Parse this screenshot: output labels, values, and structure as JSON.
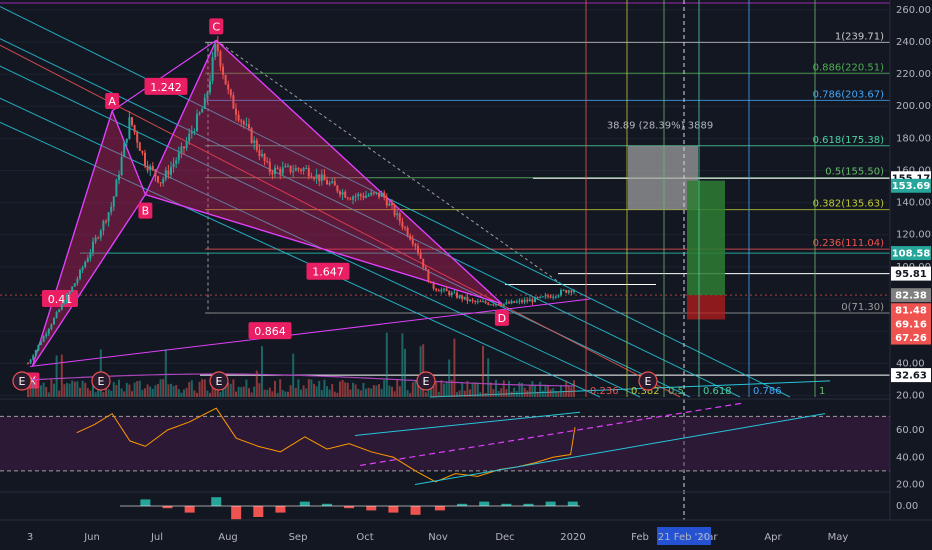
{
  "chart_data": [
    {
      "type": "candlestick",
      "y_tick_labels": [
        "260.00",
        "240.00",
        "220.00",
        "200.00",
        "180.00",
        "160.00",
        "140.00",
        "120.00",
        "100.00",
        "80.00",
        "60.00",
        "40.00",
        "20.00"
      ],
      "y_ticks": [
        260,
        240,
        220,
        200,
        180,
        160,
        140,
        120,
        100,
        80,
        60,
        40,
        20
      ],
      "ylim": [
        19,
        263
      ],
      "x_tick_labels": [
        "3",
        "Jun",
        "Jul",
        "Aug",
        "Sep",
        "Oct",
        "Nov",
        "Dec",
        "2020",
        "Feb",
        "Mar",
        "Apr",
        "May"
      ],
      "x_axis_highlight": "21 Feb '20",
      "price_path": [
        {
          "x": "2019-05-03",
          "y": 40
        },
        {
          "x": "2019-05-25",
          "y": 92
        },
        {
          "x": "2019-06-10",
          "y": 139
        },
        {
          "x": "2019-06-18",
          "y": 192
        },
        {
          "x": "2019-06-25",
          "y": 165
        },
        {
          "x": "2019-07-02",
          "y": 153
        },
        {
          "x": "2019-07-12",
          "y": 173
        },
        {
          "x": "2019-07-22",
          "y": 202
        },
        {
          "x": "2019-07-27",
          "y": 239
        },
        {
          "x": "2019-08-02",
          "y": 205
        },
        {
          "x": "2019-08-20",
          "y": 160
        },
        {
          "x": "2019-09-05",
          "y": 161
        },
        {
          "x": "2019-09-25",
          "y": 144
        },
        {
          "x": "2019-10-10",
          "y": 145
        },
        {
          "x": "2019-10-25",
          "y": 114
        },
        {
          "x": "2019-11-01",
          "y": 88
        },
        {
          "x": "2019-11-20",
          "y": 78
        },
        {
          "x": "2019-12-05",
          "y": 77
        },
        {
          "x": "2019-12-20",
          "y": 80
        },
        {
          "x": "2020-01-03",
          "y": 86
        }
      ],
      "pattern_points": [
        {
          "label": "X",
          "x": "2019-05-05",
          "y": 38
        },
        {
          "label": "A",
          "x": "2019-06-10",
          "y": 197
        },
        {
          "label": "B",
          "x": "2019-06-25",
          "y": 145
        },
        {
          "label": "C",
          "x": "2019-07-27",
          "y": 241
        },
        {
          "label": "D",
          "x": "2019-12-03",
          "y": 77
        }
      ],
      "pattern_ratios": [
        "0.41",
        "1.242",
        "1.647",
        "0.864"
      ],
      "fib_levels": [
        {
          "label": "1(239.71)",
          "value": 239.71,
          "color": "#c9c9c9"
        },
        {
          "label": "0.886(220.51)",
          "value": 220.51,
          "color": "#4caf50"
        },
        {
          "label": "0.786(203.67)",
          "value": 203.67,
          "color": "#42a5f5"
        },
        {
          "label": "0.618(175.38)",
          "value": 175.38,
          "color": "#4dd0a0"
        },
        {
          "label": "0.5(155.50)",
          "value": 155.5,
          "color": "#66bb6a"
        },
        {
          "label": "0.382(135.63)",
          "value": 135.63,
          "color": "#c0ca33"
        },
        {
          "label": "0.236(111.04)",
          "value": 111.04,
          "color": "#ef5350"
        },
        {
          "label": "0(71.30)",
          "value": 71.3,
          "color": "#9e9e9e"
        }
      ],
      "measure_label": "38.89 (28.39%) 3889",
      "time_fib_labels": [
        "0.236",
        "0.382",
        "0.5",
        "0.618",
        "0.786",
        "1"
      ],
      "event_markers": [
        "E",
        "E",
        "E",
        "E",
        "E"
      ],
      "price_tags": [
        {
          "value": "155.17",
          "bg": "#ffffff",
          "fg": "#131722",
          "y": 155.17
        },
        {
          "value": "153.69",
          "bg": "#26a69a",
          "fg": "#ffffff",
          "y": 150.5
        },
        {
          "value": "108.58",
          "bg": "#26a69a",
          "fg": "#ffffff",
          "y": 108.58
        },
        {
          "value": "95.81",
          "bg": "#ffffff",
          "fg": "#131722",
          "y": 95.81
        },
        {
          "value": "82.38",
          "bg": "#808080",
          "fg": "#ffffff",
          "y": 82.38
        },
        {
          "value": "81.48",
          "bg": "#ef5350",
          "fg": "#ffffff",
          "y": 73.0
        },
        {
          "value": "69.16",
          "bg": "#ef5350",
          "fg": "#ffffff",
          "y": 64.5
        },
        {
          "value": "67.26",
          "bg": "#ef5350",
          "fg": "#ffffff",
          "y": 56.0
        },
        {
          "value": "32.63",
          "bg": "#ffffff",
          "fg": "#131722",
          "y": 32.63
        }
      ]
    },
    {
      "type": "line",
      "indicator": "oscillator",
      "y_tick_labels": [
        "60.00",
        "40.00",
        "20.00"
      ],
      "y_ticks": [
        60,
        40,
        20
      ],
      "ylim": [
        16,
        82
      ],
      "bands": [
        70,
        30
      ],
      "values": [
        {
          "x": "2019-05-25",
          "y": 58
        },
        {
          "x": "2019-06-02",
          "y": 64
        },
        {
          "x": "2019-06-10",
          "y": 72
        },
        {
          "x": "2019-06-18",
          "y": 52
        },
        {
          "x": "2019-06-25",
          "y": 48
        },
        {
          "x": "2019-07-05",
          "y": 60
        },
        {
          "x": "2019-07-15",
          "y": 66
        },
        {
          "x": "2019-07-27",
          "y": 76
        },
        {
          "x": "2019-08-05",
          "y": 54
        },
        {
          "x": "2019-08-15",
          "y": 48
        },
        {
          "x": "2019-08-25",
          "y": 44
        },
        {
          "x": "2019-09-05",
          "y": 55
        },
        {
          "x": "2019-09-15",
          "y": 46
        },
        {
          "x": "2019-09-25",
          "y": 50
        },
        {
          "x": "2019-10-05",
          "y": 44
        },
        {
          "x": "2019-10-15",
          "y": 40
        },
        {
          "x": "2019-10-25",
          "y": 30
        },
        {
          "x": "2019-11-03",
          "y": 22
        },
        {
          "x": "2019-11-12",
          "y": 28
        },
        {
          "x": "2019-11-22",
          "y": 26
        },
        {
          "x": "2019-12-02",
          "y": 31
        },
        {
          "x": "2019-12-10",
          "y": 33
        },
        {
          "x": "2019-12-18",
          "y": 36
        },
        {
          "x": "2019-12-26",
          "y": 40
        },
        {
          "x": "2020-01-03",
          "y": 42
        },
        {
          "x": "2020-01-05",
          "y": 62
        }
      ]
    },
    {
      "type": "bar",
      "indicator": "histogram",
      "y_tick_labels": [
        "0.00"
      ],
      "y_ticks": [
        0
      ],
      "values": [
        {
          "x": "2019-06-25",
          "y": 3
        },
        {
          "x": "2019-07-05",
          "y": -1
        },
        {
          "x": "2019-07-15",
          "y": -3
        },
        {
          "x": "2019-07-27",
          "y": 4
        },
        {
          "x": "2019-08-05",
          "y": -6
        },
        {
          "x": "2019-08-15",
          "y": -5
        },
        {
          "x": "2019-08-25",
          "y": -3
        },
        {
          "x": "2019-09-05",
          "y": 2
        },
        {
          "x": "2019-09-15",
          "y": 1
        },
        {
          "x": "2019-09-25",
          "y": -1
        },
        {
          "x": "2019-10-05",
          "y": -2
        },
        {
          "x": "2019-10-15",
          "y": -3
        },
        {
          "x": "2019-10-25",
          "y": -4
        },
        {
          "x": "2019-11-05",
          "y": -2
        },
        {
          "x": "2019-11-15",
          "y": 1
        },
        {
          "x": "2019-11-25",
          "y": 2
        },
        {
          "x": "2019-12-05",
          "y": 1
        },
        {
          "x": "2019-12-15",
          "y": 1
        },
        {
          "x": "2019-12-25",
          "y": 2
        },
        {
          "x": "2020-01-04",
          "y": 2
        }
      ]
    }
  ]
}
